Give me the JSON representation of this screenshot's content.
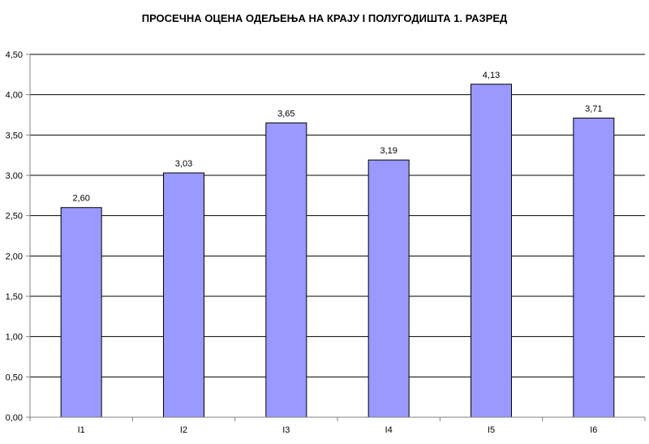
{
  "chart_data": {
    "type": "bar",
    "title": "ПРОСЕЧНА ОЦЕНА ОДЕЉЕЊА НА КРАЈУ  I ПОЛУГОДИШТА 1. РАЗРЕД",
    "xlabel": "",
    "ylabel": "",
    "categories": [
      "I1",
      "I2",
      "I3",
      "I4",
      "I5",
      "I6"
    ],
    "values": [
      2.6,
      3.03,
      3.65,
      3.19,
      4.13,
      3.71
    ],
    "data_labels": [
      "2,60",
      "3,03",
      "3,65",
      "3,19",
      "4,13",
      "3,71"
    ],
    "ylim": [
      0,
      4.5
    ],
    "y_ticks": [
      0,
      0.5,
      1.0,
      1.5,
      2.0,
      2.5,
      3.0,
      3.5,
      4.0,
      4.5
    ],
    "y_tick_labels": [
      "0,00",
      "0,50",
      "1,00",
      "1,50",
      "2,00",
      "2,50",
      "3,00",
      "3,50",
      "4,00",
      "4,50"
    ],
    "grid": true,
    "legend": "none",
    "colors": {
      "bar_fill": "#9999ff",
      "bar_stroke": "#000000",
      "gridline": "#000000",
      "axis": "#808080"
    }
  }
}
